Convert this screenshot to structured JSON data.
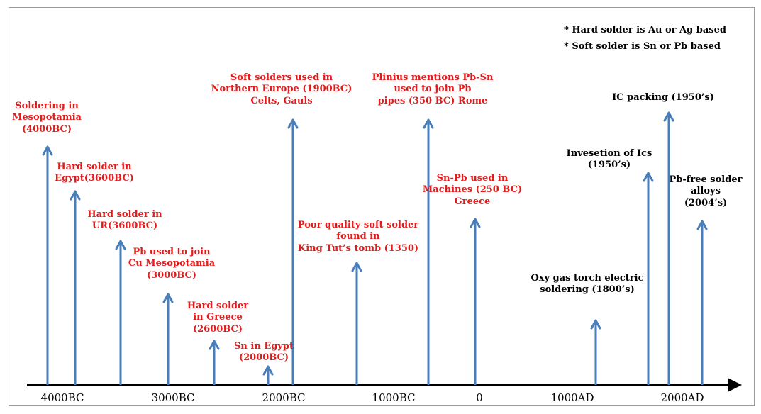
{
  "colors": {
    "arrow": "#4a7ebb",
    "axis": "#000000",
    "red_text": "#e31b1b",
    "black_text": "#000000",
    "frame_border": "#9a9a9a"
  },
  "notes": [
    "* Hard solder is Au or Ag based",
    "* Soft solder is Sn or Pb based"
  ],
  "axis_labels": [
    "4000BC",
    "3000BC",
    "2000BC",
    "1000BC",
    "0",
    "1000AD",
    "2000AD"
  ],
  "events": [
    {
      "id": "soldering-mesopotamia",
      "lines": [
        "Soldering in",
        "Mesopotamia",
        "(4000BC)"
      ],
      "color": "red"
    },
    {
      "id": "hard-solder-egypt",
      "lines": [
        "Hard solder in",
        "Egypt(3600BC)"
      ],
      "color": "red"
    },
    {
      "id": "hard-solder-ur",
      "lines": [
        "Hard solder in",
        "UR(3600BC)"
      ],
      "color": "red"
    },
    {
      "id": "pb-cu-mesopotamia",
      "lines": [
        "Pb used to join",
        "Cu Mesopotamia",
        "(3000BC)"
      ],
      "color": "red"
    },
    {
      "id": "hard-solder-greece",
      "lines": [
        "Hard solder",
        "in Greece",
        "(2600BC)"
      ],
      "color": "red"
    },
    {
      "id": "sn-egypt",
      "lines": [
        "Sn in Egypt",
        "(2000BC)"
      ],
      "color": "red"
    },
    {
      "id": "soft-solders-northern-europe",
      "lines": [
        "Soft solders used in",
        "Northern Europe (1900BC)",
        "Celts, Gauls"
      ],
      "color": "red"
    },
    {
      "id": "king-tut",
      "lines": [
        "Poor quality soft solder",
        "found in",
        "King Tut’s tomb (1350)"
      ],
      "color": "red"
    },
    {
      "id": "plinius",
      "lines": [
        "Plinius mentions Pb-Sn",
        "used to join Pb",
        "pipes (350 BC) Rome"
      ],
      "color": "red"
    },
    {
      "id": "sn-pb-machines",
      "lines": [
        "Sn-Pb used in",
        "Machines (250 BC)",
        "Greece"
      ],
      "color": "red"
    },
    {
      "id": "oxy-gas-torch",
      "lines": [
        "Oxy gas torch electric",
        "soldering (1800’s)"
      ],
      "color": "black"
    },
    {
      "id": "invesetion-ics",
      "lines": [
        "Invesetion of Ics",
        "(1950’s)"
      ],
      "color": "black"
    },
    {
      "id": "ic-packing",
      "lines": [
        "IC packing (1950’s)"
      ],
      "color": "black"
    },
    {
      "id": "pb-free-solder",
      "lines": [
        "Pb-free solder",
        "alloys",
        "(2004’s)"
      ],
      "color": "black"
    }
  ]
}
